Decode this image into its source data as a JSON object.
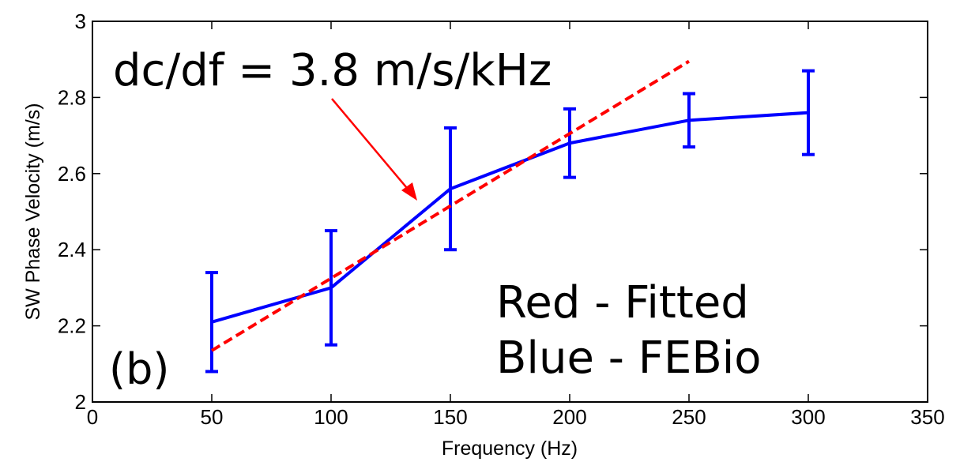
{
  "chart_data": {
    "type": "line",
    "xlabel": "Frequency (Hz)",
    "ylabel": "SW Phase Velocity (m/s)",
    "xlim": [
      0,
      350
    ],
    "ylim": [
      2,
      3
    ],
    "xticks": [
      0,
      50,
      100,
      150,
      200,
      250,
      300,
      350
    ],
    "yticks": [
      2,
      2.2,
      2.4,
      2.6,
      2.8,
      3
    ],
    "xtick_labels": [
      "0",
      "50",
      "100",
      "150",
      "200",
      "250",
      "300",
      "350"
    ],
    "ytick_labels": [
      "2",
      "2.2",
      "2.4",
      "2.6",
      "2.8",
      "3"
    ],
    "grid": false,
    "series": [
      {
        "color": "#0000ff",
        "style": "solid",
        "x": [
          50,
          100,
          150,
          200,
          250,
          300
        ],
        "y": [
          2.21,
          2.3,
          2.56,
          2.68,
          2.74,
          2.76
        ],
        "error_low": [
          2.08,
          2.15,
          2.4,
          2.59,
          2.67,
          2.65
        ],
        "error_high": [
          2.34,
          2.45,
          2.72,
          2.77,
          2.81,
          2.87
        ]
      },
      {
        "color": "#ff0000",
        "style": "dashed",
        "x": [
          50,
          250
        ],
        "y": [
          2.135,
          2.895
        ]
      }
    ],
    "annotations": {
      "slope_text": "dc/df = 3.8 m/s/kHz",
      "panel_label": "(b)",
      "legend_line1": "Red - Fitted",
      "legend_line2": "Blue - FEBio",
      "arrow_color": "#ff0000"
    }
  }
}
